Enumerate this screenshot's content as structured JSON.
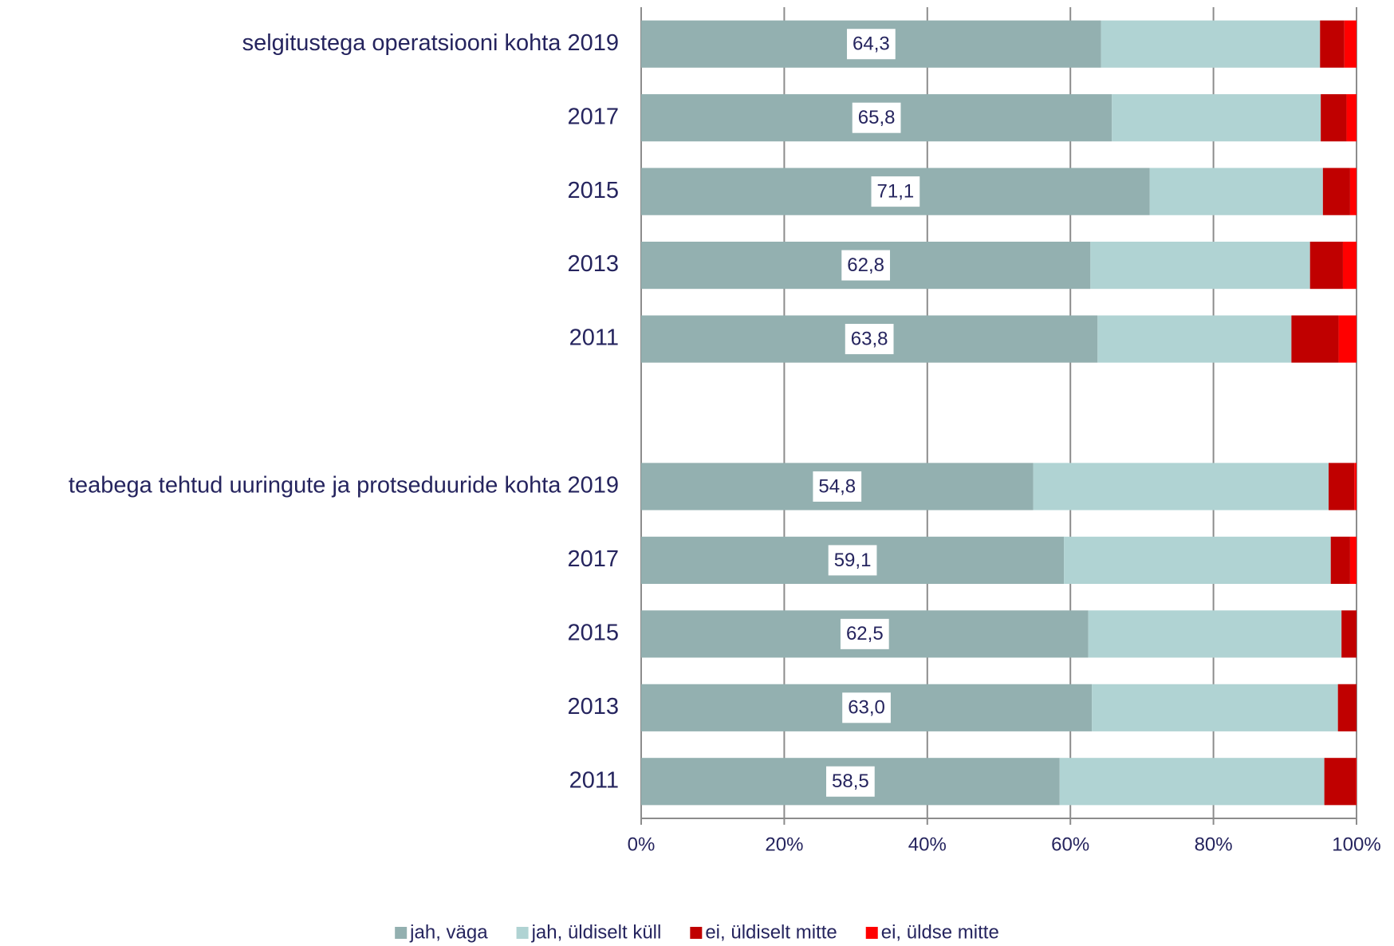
{
  "chart_data": {
    "type": "stacked_barh",
    "categories": [
      "selgitustega operatsiooni kohta 2019",
      "2017",
      "2015",
      "2013",
      "2011",
      null,
      "teabega tehtud uuringute ja protseduuride kohta 2019",
      "2017",
      "2015",
      "2013",
      "2011"
    ],
    "series": [
      {
        "name": "jah, väga",
        "color": "#93b0b0",
        "values": [
          64.3,
          65.8,
          71.1,
          62.8,
          63.8,
          null,
          54.8,
          59.1,
          62.5,
          63.0,
          58.5
        ],
        "value_labels": [
          "64,3",
          "65,8",
          "71,1",
          "62,8",
          "63,8",
          null,
          "54,8",
          "59,1",
          "62,5",
          "63,0",
          "58,5"
        ]
      },
      {
        "name": "jah, üldiselt küll",
        "color": "#b0d3d3",
        "values": [
          30.6,
          29.2,
          24.2,
          30.7,
          27.1,
          null,
          41.3,
          37.3,
          35.4,
          34.4,
          37.0
        ]
      },
      {
        "name": "ei, üldiselt mitte",
        "color": "#c00000",
        "values": [
          3.4,
          3.6,
          3.8,
          4.6,
          6.6,
          null,
          3.6,
          2.7,
          2.1,
          2.6,
          4.4
        ]
      },
      {
        "name": "ei, üldse mitte",
        "color": "#ff0000",
        "values": [
          1.7,
          1.4,
          0.9,
          1.9,
          2.5,
          null,
          0.3,
          0.9,
          0.0,
          0.0,
          0.1
        ]
      }
    ],
    "xlim": [
      0,
      100
    ],
    "xticks": [
      {
        "value": 0,
        "label": "0%"
      },
      {
        "value": 20,
        "label": "20%"
      },
      {
        "value": 40,
        "label": "40%"
      },
      {
        "value": 60,
        "label": "60%"
      },
      {
        "value": 80,
        "label": "80%"
      },
      {
        "value": 100,
        "label": "100%"
      }
    ],
    "grid": true,
    "legend": "bottom"
  }
}
